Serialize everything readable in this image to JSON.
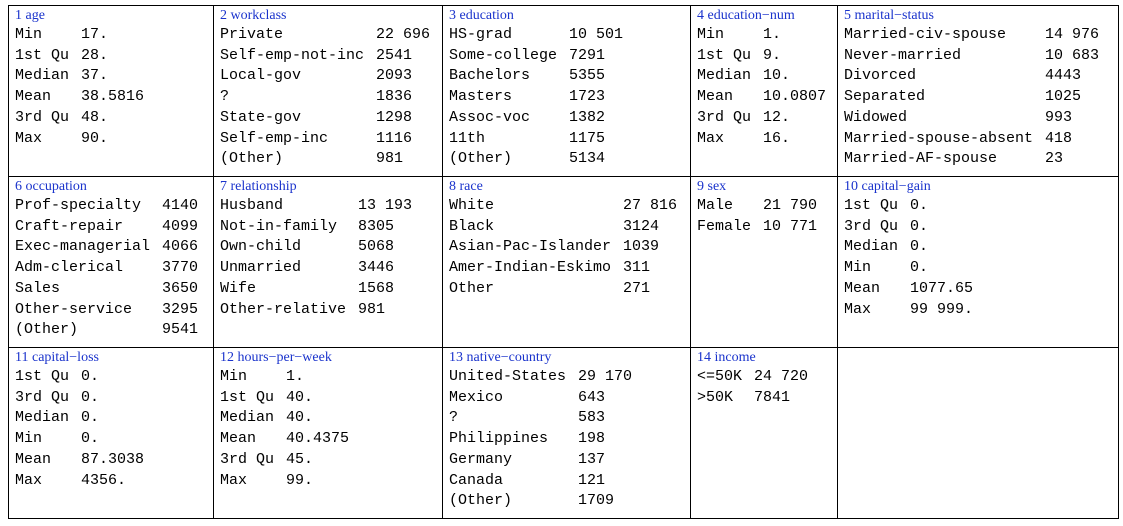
{
  "cells": [
    {
      "title": "1 age",
      "rows": [
        [
          "Min",
          "17."
        ],
        [
          "1st Qu",
          "28."
        ],
        [
          "Median",
          "37."
        ],
        [
          "Mean",
          "38.5816"
        ],
        [
          "3rd Qu",
          "48."
        ],
        [
          "Max",
          "90."
        ]
      ]
    },
    {
      "title": "2 workclass",
      "rows": [
        [
          "Private",
          "22 696"
        ],
        [
          "Self-emp-not-inc",
          "2541"
        ],
        [
          "Local-gov",
          "2093"
        ],
        [
          "?",
          "1836"
        ],
        [
          "State-gov",
          "1298"
        ],
        [
          "Self-emp-inc",
          "1116"
        ],
        [
          "(Other)",
          "981"
        ]
      ]
    },
    {
      "title": "3 education",
      "rows": [
        [
          "HS-grad",
          "10 501"
        ],
        [
          "Some-college",
          "7291"
        ],
        [
          "Bachelors",
          "5355"
        ],
        [
          "Masters",
          "1723"
        ],
        [
          "Assoc-voc",
          "1382"
        ],
        [
          "11th",
          "1175"
        ],
        [
          "(Other)",
          "5134"
        ]
      ]
    },
    {
      "title": "4 education−num",
      "rows": [
        [
          "Min",
          "1."
        ],
        [
          "1st Qu",
          "9."
        ],
        [
          "Median",
          "10."
        ],
        [
          "Mean",
          "10.0807"
        ],
        [
          "3rd Qu",
          "12."
        ],
        [
          "Max",
          "16."
        ]
      ]
    },
    {
      "title": "5 marital−status",
      "rows": [
        [
          "Married-civ-spouse",
          "14 976"
        ],
        [
          "Never-married",
          "10 683"
        ],
        [
          "Divorced",
          "4443"
        ],
        [
          "Separated",
          "1025"
        ],
        [
          "Widowed",
          "993"
        ],
        [
          "Married-spouse-absent",
          "418"
        ],
        [
          "Married-AF-spouse",
          "23"
        ]
      ]
    },
    {
      "title": "6 occupation",
      "rows": [
        [
          "Prof-specialty",
          "4140"
        ],
        [
          "Craft-repair",
          "4099"
        ],
        [
          "Exec-managerial",
          "4066"
        ],
        [
          "Adm-clerical",
          "3770"
        ],
        [
          "Sales",
          "3650"
        ],
        [
          "Other-service",
          "3295"
        ],
        [
          "(Other)",
          "9541"
        ]
      ]
    },
    {
      "title": "7 relationship",
      "rows": [
        [
          "Husband",
          "13 193"
        ],
        [
          "Not-in-family",
          "8305"
        ],
        [
          "Own-child",
          "5068"
        ],
        [
          "Unmarried",
          "3446"
        ],
        [
          "Wife",
          "1568"
        ],
        [
          "Other-relative",
          "981"
        ]
      ]
    },
    {
      "title": "8 race",
      "rows": [
        [
          "White",
          "27 816"
        ],
        [
          "Black",
          "3124"
        ],
        [
          "Asian-Pac-Islander",
          "1039"
        ],
        [
          "Amer-Indian-Eskimo",
          "311"
        ],
        [
          "Other",
          "271"
        ]
      ]
    },
    {
      "title": "9 sex",
      "rows": [
        [
          "Male",
          "21 790"
        ],
        [
          "Female",
          "10 771"
        ]
      ]
    },
    {
      "title": "10 capital−gain",
      "rows": [
        [
          "1st Qu",
          "0."
        ],
        [
          "3rd Qu",
          "0."
        ],
        [
          "Median",
          "0."
        ],
        [
          "Min",
          "0."
        ],
        [
          "Mean",
          "1077.65"
        ],
        [
          "Max",
          "99 999."
        ]
      ]
    },
    {
      "title": "11 capital−loss",
      "rows": [
        [
          "1st Qu",
          "0."
        ],
        [
          "3rd Qu",
          "0."
        ],
        [
          "Median",
          "0."
        ],
        [
          "Min",
          "0."
        ],
        [
          "Mean",
          "87.3038"
        ],
        [
          "Max",
          "4356."
        ]
      ]
    },
    {
      "title": "12 hours−per−week",
      "rows": [
        [
          "Min",
          "1."
        ],
        [
          "1st Qu",
          "40."
        ],
        [
          "Median",
          "40."
        ],
        [
          "Mean",
          "40.4375"
        ],
        [
          "3rd Qu",
          "45."
        ],
        [
          "Max",
          "99."
        ]
      ]
    },
    {
      "title": "13 native−country",
      "rows": [
        [
          "United-States",
          "29 170"
        ],
        [
          "Mexico",
          "643"
        ],
        [
          "?",
          "583"
        ],
        [
          "Philippines",
          "198"
        ],
        [
          "Germany",
          "137"
        ],
        [
          "Canada",
          "121"
        ],
        [
          "(Other)",
          "1709"
        ]
      ]
    },
    {
      "title": "14 income",
      "rows": [
        [
          "<=50K",
          "24 720"
        ],
        [
          ">50K",
          "7841"
        ]
      ]
    }
  ]
}
